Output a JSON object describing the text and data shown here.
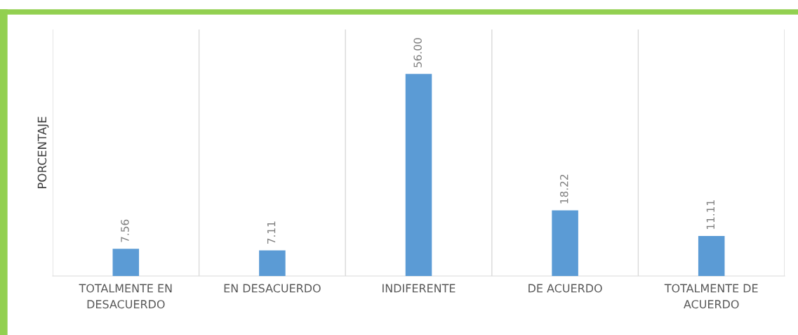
{
  "chart_data": {
    "type": "bar",
    "ylabel": "PORCENTAJE",
    "categories": [
      "TOTALMENTE EN DESACUERDO",
      "EN DESACUERDO",
      "INDIFERENTE",
      "DE ACUERDO",
      "TOTALMENTE DE ACUERDO"
    ],
    "values": [
      7.56,
      7.11,
      56.0,
      18.22,
      11.11
    ],
    "value_labels": [
      "7.56",
      "7.11",
      "56.00",
      "18.22",
      "11.11"
    ],
    "color": "#5b9bd5",
    "grid": "x",
    "data_labels": true
  }
}
